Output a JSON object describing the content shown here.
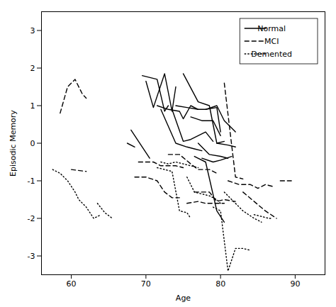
{
  "chart_data": {
    "type": "line",
    "xlabel": "Age",
    "ylabel": "Episodic Memory",
    "xlim": [
      56,
      94
    ],
    "ylim": [
      -3.5,
      3.5
    ],
    "xticks": [
      60,
      70,
      80,
      90
    ],
    "yticks": [
      -3,
      -2,
      -1,
      0,
      1,
      2,
      3
    ],
    "grid": false,
    "legend": "upper right",
    "series": [
      {
        "name": "Normal",
        "color": "#000000",
        "line_style": "solid",
        "values": [
          [
            [
              67.5,
              0.0
            ],
            [
              68.5,
              -0.1
            ]
          ],
          [
            [
              68.0,
              0.35
            ],
            [
              70.5,
              -0.4
            ]
          ],
          [
            [
              69.5,
              1.8
            ],
            [
              71.5,
              1.7
            ],
            [
              72.5,
              0.85
            ],
            [
              73.0,
              1.0
            ]
          ],
          [
            [
              70.0,
              1.65
            ],
            [
              71.0,
              0.95
            ],
            [
              72.5,
              1.85
            ],
            [
              73.5,
              0.85
            ],
            [
              74.0,
              1.5
            ]
          ],
          [
            [
              71.5,
              1.0
            ],
            [
              73.0,
              0.9
            ],
            [
              74.5,
              0.85
            ],
            [
              75.0,
              0.65
            ],
            [
              76.0,
              1.0
            ],
            [
              77.0,
              0.9
            ]
          ],
          [
            [
              72.0,
              0.9
            ],
            [
              74.0,
              0.0
            ],
            [
              75.5,
              -0.1
            ],
            [
              76.5,
              -0.15
            ],
            [
              77.5,
              -0.2
            ]
          ],
          [
            [
              73.5,
              0.9
            ],
            [
              75.0,
              0.05
            ],
            [
              76.0,
              0.1
            ],
            [
              78.0,
              0.3
            ],
            [
              79.0,
              0.05
            ]
          ],
          [
            [
              74.0,
              1.0
            ],
            [
              75.5,
              0.95
            ],
            [
              77.0,
              0.9
            ],
            [
              78.0,
              0.9
            ],
            [
              79.5,
              0.95
            ],
            [
              80.0,
              0.3
            ]
          ],
          [
            [
              75.0,
              1.85
            ],
            [
              77.0,
              1.1
            ],
            [
              78.5,
              1.0
            ],
            [
              79.5,
              0.0
            ],
            [
              80.5,
              0.05
            ]
          ],
          [
            [
              76.0,
              0.7
            ],
            [
              77.5,
              0.6
            ],
            [
              79.0,
              0.6
            ],
            [
              80.0,
              0.2
            ]
          ],
          [
            [
              77.0,
              0.0
            ],
            [
              78.5,
              -0.3
            ],
            [
              80.0,
              -0.35
            ],
            [
              81.0,
              -0.4
            ]
          ],
          [
            [
              78.0,
              0.9
            ],
            [
              79.5,
              1.0
            ],
            [
              80.5,
              0.6
            ],
            [
              82.0,
              0.3
            ]
          ],
          [
            [
              77.5,
              -0.4
            ],
            [
              79.0,
              -0.5
            ],
            [
              80.0,
              -0.45
            ],
            [
              81.5,
              -0.35
            ]
          ],
          [
            [
              76.5,
              -0.35
            ],
            [
              78.0,
              -0.5
            ],
            [
              79.5,
              -1.8
            ],
            [
              80.5,
              -2.1
            ]
          ],
          [
            [
              79.5,
              0.0
            ],
            [
              81.0,
              -0.05
            ],
            [
              82.0,
              -0.1
            ]
          ]
        ]
      },
      {
        "name": "MCI",
        "color": "#000000",
        "line_style": "dashed",
        "values": [
          [
            [
              58.5,
              0.8
            ],
            [
              59.5,
              1.5
            ],
            [
              60.5,
              1.7
            ],
            [
              61.5,
              1.3
            ],
            [
              62.0,
              1.2
            ]
          ],
          [
            [
              60.0,
              -0.7
            ],
            [
              62.0,
              -0.75
            ]
          ],
          [
            [
              68.5,
              -0.9
            ],
            [
              70.0,
              -0.9
            ],
            [
              71.5,
              -1.0
            ],
            [
              72.5,
              -1.3
            ],
            [
              73.5,
              -1.45
            ],
            [
              74.5,
              -1.45
            ]
          ],
          [
            [
              69.0,
              -0.5
            ],
            [
              71.0,
              -0.5
            ],
            [
              72.0,
              -0.6
            ],
            [
              74.0,
              -0.6
            ],
            [
              75.0,
              -0.65
            ]
          ],
          [
            [
              73.0,
              -0.3
            ],
            [
              74.5,
              -0.3
            ],
            [
              76.0,
              -0.55
            ],
            [
              77.0,
              -0.7
            ],
            [
              78.5,
              -0.7
            ],
            [
              79.5,
              -0.8
            ]
          ],
          [
            [
              75.5,
              -1.6
            ],
            [
              77.0,
              -1.55
            ],
            [
              78.0,
              -1.6
            ],
            [
              79.5,
              -1.6
            ],
            [
              80.5,
              -1.6
            ]
          ],
          [
            [
              76.5,
              -1.3
            ],
            [
              78.5,
              -1.3
            ],
            [
              79.5,
              -1.55
            ],
            [
              80.5,
              -1.5
            ],
            [
              82.0,
              -1.55
            ]
          ],
          [
            [
              80.5,
              1.6
            ],
            [
              82.0,
              -0.9
            ],
            [
              83.0,
              -0.95
            ]
          ],
          [
            [
              81.0,
              -1.0
            ],
            [
              82.5,
              -1.1
            ],
            [
              84.0,
              -1.1
            ],
            [
              85.0,
              -1.2
            ],
            [
              86.0,
              -1.1
            ],
            [
              87.0,
              -1.15
            ]
          ],
          [
            [
              83.0,
              -1.3
            ],
            [
              84.5,
              -1.55
            ],
            [
              86.0,
              -1.8
            ],
            [
              87.5,
              -2.0
            ]
          ],
          [
            [
              88.0,
              -1.0
            ],
            [
              89.5,
              -1.0
            ]
          ]
        ]
      },
      {
        "name": "Demented",
        "color": "#000000",
        "line_style": "dotted",
        "values": [
          [
            [
              57.5,
              -0.7
            ],
            [
              58.5,
              -0.8
            ],
            [
              59.5,
              -1.0
            ],
            [
              60.5,
              -1.3
            ],
            [
              61.0,
              -1.5
            ],
            [
              62.0,
              -1.7
            ],
            [
              63.0,
              -2.0
            ],
            [
              64.0,
              -1.9
            ]
          ],
          [
            [
              63.5,
              -1.6
            ],
            [
              64.5,
              -1.85
            ],
            [
              65.5,
              -2.0
            ]
          ],
          [
            [
              71.5,
              -0.65
            ],
            [
              72.5,
              -0.7
            ],
            [
              73.5,
              -0.75
            ],
            [
              74.5,
              -1.8
            ],
            [
              75.5,
              -1.85
            ],
            [
              76.0,
              -2.0
            ]
          ],
          [
            [
              72.0,
              -0.5
            ],
            [
              73.0,
              -0.55
            ],
            [
              74.0,
              -0.5
            ],
            [
              75.0,
              -0.55
            ],
            [
              76.0,
              -0.6
            ],
            [
              77.0,
              -0.65
            ]
          ],
          [
            [
              75.5,
              -0.9
            ],
            [
              76.5,
              -1.3
            ],
            [
              77.5,
              -1.35
            ],
            [
              78.5,
              -1.4
            ],
            [
              79.5,
              -1.5
            ],
            [
              80.0,
              -1.6
            ]
          ],
          [
            [
              79.0,
              -1.7
            ],
            [
              80.0,
              -1.8
            ],
            [
              81.0,
              -3.4
            ],
            [
              82.0,
              -2.8
            ],
            [
              83.0,
              -2.8
            ],
            [
              84.0,
              -2.85
            ]
          ],
          [
            [
              80.5,
              -1.3
            ],
            [
              82.0,
              -1.6
            ],
            [
              83.0,
              -1.8
            ],
            [
              84.5,
              -2.0
            ],
            [
              85.5,
              -2.1
            ]
          ],
          [
            [
              84.5,
              -1.9
            ],
            [
              85.5,
              -1.95
            ],
            [
              86.5,
              -2.0
            ],
            [
              87.0,
              -2.0
            ]
          ]
        ]
      }
    ]
  }
}
